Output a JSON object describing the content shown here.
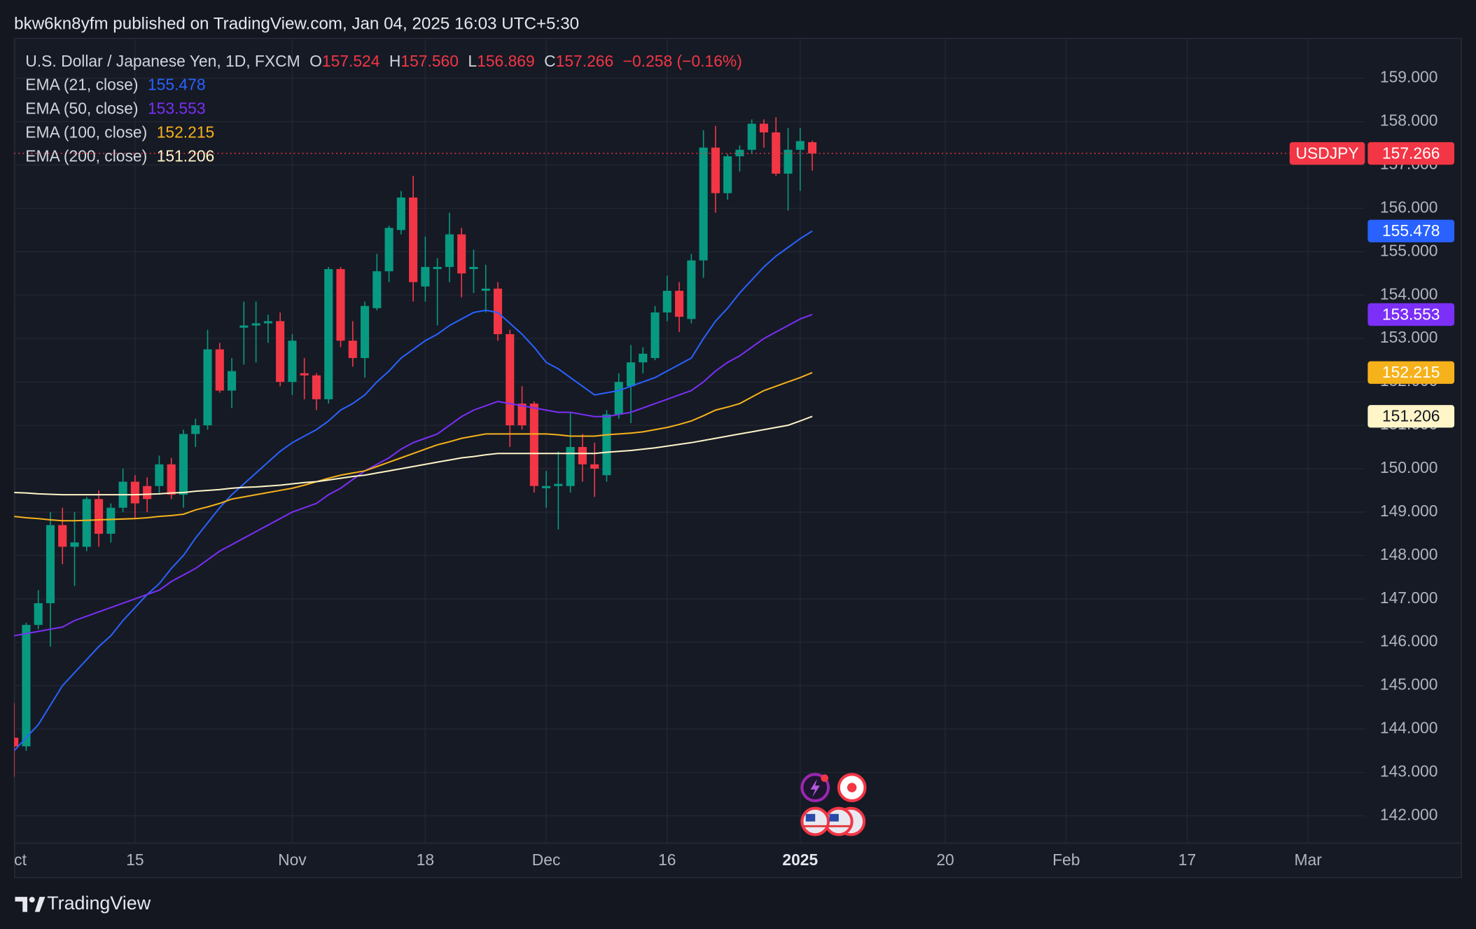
{
  "header": "bkw6kn8yfm published on TradingView.com, Jan 04, 2025 16:03 UTC+5:30",
  "footer": "TradingView",
  "chart_data": {
    "type": "candlestick",
    "title": "U.S. Dollar / Japanese Yen, 1D, FXCM",
    "symbol": "USDJPY",
    "ohlc_legend": {
      "labels": [
        "O",
        "H",
        "L",
        "C"
      ],
      "value_labels": [
        "157.524",
        "157.560",
        "156.869",
        "157.266"
      ]
    },
    "change_label": "−0.258 (−0.16%)",
    "up_color": "#089981",
    "down_color": "#f23645",
    "candles": {
      "open": [
        143.8,
        143.6,
        146.4,
        146.9,
        148.7,
        148.2,
        148.2,
        149.3,
        148.5,
        149.1,
        149.7,
        149.6,
        149.6,
        150.1,
        149.4,
        150.8,
        151.0,
        152.75,
        151.8,
        153.25,
        153.3,
        153.35,
        153.4,
        152.0,
        152.2,
        152.15,
        151.6,
        154.6,
        152.95,
        152.55,
        153.7,
        154.55,
        155.5,
        156.25,
        154.2,
        154.6,
        154.65,
        155.4,
        154.6,
        154.1,
        154.15,
        153.1,
        151.5,
        151.5,
        149.55,
        149.6,
        149.6,
        150.5,
        150.1,
        149.85,
        151.25,
        151.9,
        152.45,
        152.55,
        153.6,
        154.1,
        153.45,
        154.8,
        157.4,
        156.35,
        157.2,
        157.35,
        157.95,
        157.75,
        156.8,
        157.35,
        157.524
      ],
      "high": [
        144.6,
        146.45,
        147.2,
        149.0,
        149.1,
        149.0,
        149.35,
        149.5,
        149.2,
        150.0,
        149.85,
        149.8,
        150.3,
        150.25,
        150.9,
        151.15,
        153.2,
        152.9,
        152.55,
        153.85,
        153.85,
        153.55,
        153.6,
        153.1,
        152.55,
        152.2,
        154.65,
        154.65,
        153.4,
        153.85,
        154.95,
        155.6,
        156.4,
        156.75,
        155.35,
        154.85,
        155.9,
        155.55,
        155.05,
        154.7,
        154.3,
        153.2,
        151.9,
        151.55,
        149.95,
        150.4,
        151.3,
        150.8,
        150.6,
        151.35,
        152.2,
        152.85,
        152.8,
        153.75,
        154.45,
        154.3,
        154.95,
        157.8,
        157.9,
        157.25,
        157.45,
        158.05,
        158.05,
        158.1,
        157.85,
        157.85,
        157.56
      ],
      "low": [
        142.9,
        143.5,
        146.3,
        145.9,
        147.8,
        147.3,
        148.1,
        148.2,
        148.3,
        149.0,
        148.85,
        149.0,
        149.4,
        149.3,
        149.1,
        150.5,
        150.9,
        151.75,
        151.4,
        152.4,
        152.45,
        152.9,
        151.9,
        151.7,
        151.6,
        151.35,
        151.5,
        152.8,
        152.35,
        152.1,
        153.65,
        154.3,
        155.4,
        153.85,
        153.85,
        153.3,
        154.3,
        153.95,
        154.05,
        153.6,
        152.95,
        150.5,
        150.9,
        149.45,
        149.1,
        148.6,
        149.45,
        149.7,
        149.35,
        149.7,
        151.15,
        151.05,
        152.2,
        152.5,
        153.4,
        153.15,
        153.35,
        154.4,
        155.9,
        156.2,
        156.85,
        157.25,
        157.4,
        156.75,
        155.95,
        156.4,
        156.869
      ],
      "close": [
        143.6,
        146.4,
        146.9,
        148.7,
        148.2,
        148.3,
        149.3,
        148.5,
        149.1,
        149.7,
        149.2,
        149.3,
        150.1,
        149.4,
        150.8,
        151.0,
        152.75,
        151.8,
        152.25,
        153.3,
        153.35,
        153.4,
        152.0,
        152.95,
        152.15,
        151.6,
        154.6,
        152.95,
        152.55,
        153.75,
        154.55,
        155.55,
        156.25,
        154.3,
        154.65,
        154.65,
        155.4,
        154.5,
        154.65,
        154.15,
        153.1,
        151.0,
        151.0,
        149.6,
        149.6,
        149.65,
        150.5,
        150.1,
        150.0,
        151.25,
        152.0,
        152.45,
        152.65,
        153.6,
        154.1,
        153.5,
        154.8,
        157.4,
        156.35,
        157.2,
        157.35,
        157.95,
        157.75,
        156.8,
        157.35,
        157.55,
        157.266
      ]
    },
    "series": [
      {
        "name": "EMA (21, close)",
        "color": "#2962ff",
        "values": [
          143.5,
          143.8,
          144.1,
          144.55,
          145.0,
          145.3,
          145.6,
          145.9,
          146.15,
          146.5,
          146.8,
          147.1,
          147.35,
          147.7,
          148.0,
          148.4,
          148.75,
          149.1,
          149.4,
          149.65,
          149.9,
          150.15,
          150.4,
          150.6,
          150.75,
          150.9,
          151.1,
          151.35,
          151.5,
          151.7,
          152.0,
          152.25,
          152.55,
          152.75,
          152.95,
          153.1,
          153.3,
          153.45,
          153.6,
          153.65,
          153.6,
          153.35,
          153.1,
          152.8,
          152.45,
          152.3,
          152.1,
          151.9,
          151.7,
          151.75,
          151.8,
          151.9,
          152.0,
          152.1,
          152.25,
          152.4,
          152.55,
          153.0,
          153.4,
          153.7,
          154.05,
          154.35,
          154.65,
          154.9,
          155.1,
          155.3,
          155.478
        ]
      },
      {
        "name": "EMA (50, close)",
        "color": "#7b2ff7",
        "values": [
          146.15,
          146.2,
          146.25,
          146.3,
          146.35,
          146.5,
          146.6,
          146.7,
          146.8,
          146.9,
          147.0,
          147.1,
          147.2,
          147.4,
          147.55,
          147.7,
          147.9,
          148.1,
          148.25,
          148.4,
          148.55,
          148.7,
          148.85,
          149.0,
          149.1,
          149.2,
          149.4,
          149.55,
          149.75,
          149.95,
          150.1,
          150.25,
          150.45,
          150.6,
          150.7,
          150.8,
          151.0,
          151.2,
          151.35,
          151.45,
          151.55,
          151.5,
          151.45,
          151.4,
          151.35,
          151.3,
          151.3,
          151.25,
          151.2,
          151.2,
          151.25,
          151.3,
          151.4,
          151.5,
          151.6,
          151.7,
          151.8,
          152.0,
          152.25,
          152.45,
          152.6,
          152.8,
          153.0,
          153.15,
          153.3,
          153.45,
          153.553
        ]
      },
      {
        "name": "EMA (100, close)",
        "color": "#f6b21b",
        "values": [
          148.9,
          148.87,
          148.85,
          148.82,
          148.8,
          148.8,
          148.81,
          148.82,
          148.83,
          148.84,
          148.85,
          148.87,
          148.9,
          148.92,
          148.95,
          149.05,
          149.12,
          149.2,
          149.3,
          149.35,
          149.4,
          149.45,
          149.5,
          149.55,
          149.62,
          149.7,
          149.78,
          149.85,
          149.9,
          149.95,
          150.05,
          150.15,
          150.25,
          150.35,
          150.45,
          150.55,
          150.62,
          150.7,
          150.75,
          150.8,
          150.8,
          150.8,
          150.8,
          150.8,
          150.8,
          150.78,
          150.75,
          150.75,
          150.75,
          150.78,
          150.8,
          150.82,
          150.85,
          150.9,
          150.95,
          151.02,
          151.1,
          151.22,
          151.35,
          151.42,
          151.5,
          151.65,
          151.8,
          151.9,
          152.0,
          152.1,
          152.215
        ]
      },
      {
        "name": "EMA (200, close)",
        "color": "#fff5c8",
        "values": [
          149.45,
          149.44,
          149.42,
          149.41,
          149.4,
          149.4,
          149.4,
          149.4,
          149.4,
          149.4,
          149.4,
          149.41,
          149.42,
          149.44,
          149.45,
          149.48,
          149.5,
          149.52,
          149.55,
          149.57,
          149.58,
          149.6,
          149.62,
          149.65,
          149.68,
          149.7,
          149.74,
          149.78,
          149.82,
          149.85,
          149.9,
          149.95,
          150.0,
          150.05,
          150.1,
          150.15,
          150.2,
          150.25,
          150.28,
          150.32,
          150.35,
          150.35,
          150.35,
          150.35,
          150.35,
          150.35,
          150.35,
          150.35,
          150.35,
          150.38,
          150.4,
          150.42,
          150.45,
          150.48,
          150.52,
          150.56,
          150.6,
          150.65,
          150.7,
          150.75,
          150.8,
          150.85,
          150.9,
          150.95,
          151.0,
          151.1,
          151.206
        ]
      }
    ],
    "xlim": [
      0,
      111.7
    ],
    "xticks": [
      {
        "value": 0,
        "label": "Oct"
      },
      {
        "value": 10,
        "label": "15"
      },
      {
        "value": 23,
        "label": "Nov"
      },
      {
        "value": 34,
        "label": "18"
      },
      {
        "value": 44,
        "label": "Dec"
      },
      {
        "value": 54,
        "label": "16"
      },
      {
        "value": 65,
        "label": "2025",
        "bold": true
      },
      {
        "value": 77,
        "label": "20"
      },
      {
        "value": 87,
        "label": "Feb"
      },
      {
        "value": 97,
        "label": "17"
      },
      {
        "value": 107,
        "label": "Mar"
      }
    ],
    "ylim": [
      141.37,
      159.93
    ],
    "yticks": [
      {
        "value": 142,
        "label": "142.000"
      },
      {
        "value": 143,
        "label": "143.000"
      },
      {
        "value": 144,
        "label": "144.000"
      },
      {
        "value": 145,
        "label": "145.000"
      },
      {
        "value": 146,
        "label": "146.000"
      },
      {
        "value": 147,
        "label": "147.000"
      },
      {
        "value": 148,
        "label": "148.000"
      },
      {
        "value": 149,
        "label": "149.000"
      },
      {
        "value": 150,
        "label": "150.000"
      },
      {
        "value": 151,
        "label": "151.000"
      },
      {
        "value": 152,
        "label": "152.000"
      },
      {
        "value": 153,
        "label": "153.000"
      },
      {
        "value": 154,
        "label": "154.000"
      },
      {
        "value": 155,
        "label": "155.000"
      },
      {
        "value": 156,
        "label": "156.000"
      },
      {
        "value": 157,
        "label": "157.000"
      },
      {
        "value": 158,
        "label": "158.000"
      },
      {
        "value": 159,
        "label": "159.000"
      }
    ],
    "grid": true
  }
}
